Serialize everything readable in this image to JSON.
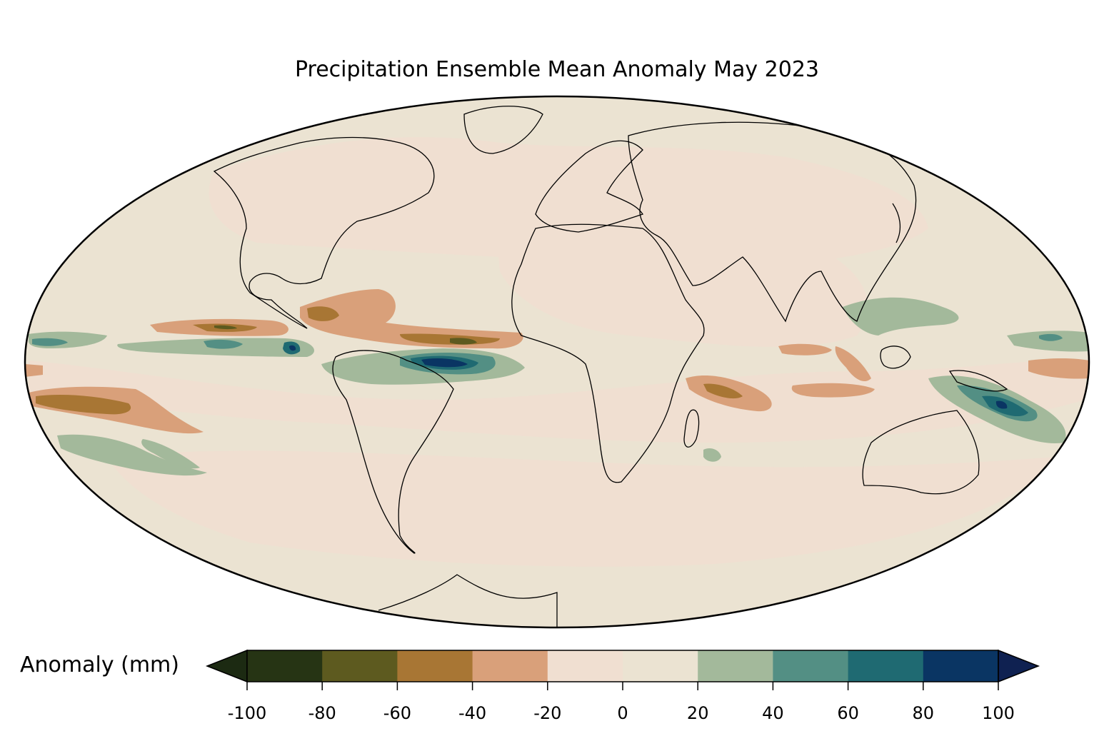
{
  "title": "Precipitation Ensemble Mean Anomaly May 2023",
  "colorbar": {
    "label": "Anomaly (mm)",
    "ticks": [
      "-100",
      "-80",
      "-60",
      "-40",
      "-20",
      "0",
      "20",
      "40",
      "60",
      "80",
      "100"
    ],
    "levels": [
      -100,
      -80,
      -60,
      -40,
      -20,
      0,
      20,
      40,
      60,
      80,
      100
    ],
    "colors": [
      "#263414",
      "#5d5a1f",
      "#a87634",
      "#d9a07a",
      "#f0dfd1",
      "#ebe3d2",
      "#a3b99b",
      "#538f84",
      "#1f6a72",
      "#0a3563"
    ],
    "under_color": "#1c2a12",
    "over_color": "#0f2151",
    "extend": "both"
  },
  "map": {
    "projection": "mollweide",
    "field": "precipitation anomaly",
    "ocean_color": "#ebe3d2",
    "land_color": "#f0dfd1"
  }
}
